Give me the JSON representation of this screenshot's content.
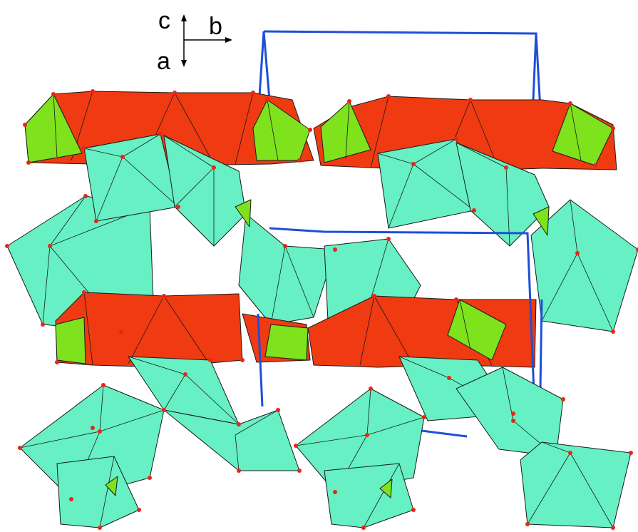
{
  "figure": {
    "axes": {
      "c_label": "c",
      "b_label": "b",
      "a_label": "a"
    },
    "colors": {
      "octahedra": "#66f0c4",
      "layer_polyhedra": "#ef3a12",
      "tetrahedra": "#7ee21c",
      "oxygen_atoms": "#e8251a",
      "unit_cell": "#1e4fd8"
    }
  }
}
